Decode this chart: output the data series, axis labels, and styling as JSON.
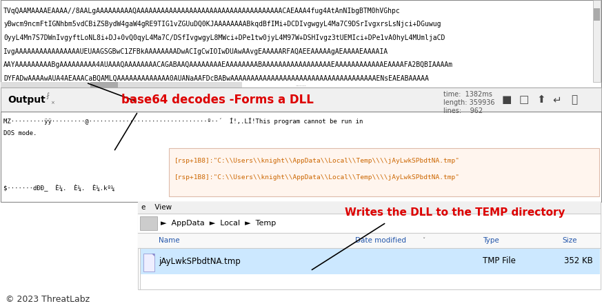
{
  "fig_width": 8.73,
  "fig_height": 4.47,
  "bg_color": "#ffffff",
  "base64_text_lines": [
    "TVqQAAMAAAAEAAAA//8AALgAAAAAAAAAQAAAAAAAAAAAAAAAAAAAAAAAAAAAAAAAAAAAACAEAAA4fug4AtAnNIbgBTM0hVGhpc",
    "yBwcm9ncmFtIGNhbm5vdCBiZSBydW4gaW4gRE9TIG1vZGUuDQ0KJAAAAAAAABkqdBfIMi+DCDIvgwgyL4Ma7C9DSrIvgxrsLsNjci+DGuwug",
    "0yyL4Mn7S7DWnIvgyftLoNL8i+DJ+0vQ0qyL4Ma7C/DSfIvgwgyL8MWci+DPe1tw0jyL4M97W+DSHIvgz3tUEMIci+DPe1vA0hyL4MUmljaCD",
    "IvgAAAAAAAAAAAAAAAAUEUAAGSGBwC1ZFBkAAAAAAAADwACIgCwIOIwDUAwAAvgEAAAAARFAQAEEAAAAAgAEAAAAEAAAAIA",
    "AAYAAAAAAAAABgAAAAAAAAA4AUAAAQAAAAAAAACAGABAAQAAAAAAAAEAAAAAAAABAAAAAAAAAAAAAAAAAEAAAAAAAAAAAAEAAAAFA2BQBIAAAAm",
    "DYFADwAAAAwAUA4AEAAACaBQAMLQAAAAAAAAAAAAA0AUANaAAFDcBABwAAAAAAAAAAAAAAAAAAAAAAAAAAAAAAAAAAAAENsEAEABAAAAA"
  ],
  "base64_text_color": "#000000",
  "base64_bg_color": "#ffffff",
  "base64_border_color": "#888888",
  "toolbar_bg": "#f0f0f0",
  "toolbar_border": "#aaaaaa",
  "output_label": "Output",
  "annotation1_text": "base64 decodes -Forms a DLL",
  "annotation1_color": "#dd0000",
  "time_text": "time:  1382ms",
  "length_text": "length: 359936",
  "lines_text": "lines:    962",
  "stats_color": "#555555",
  "dos_line1": "MZ·········ÿÿ·········@································º··´  Í!,.LÍ!This program cannot be run in",
  "dos_line2": "DOS mode.",
  "dos_line3": "$·······dÐÐ_  È¼.  È¼.  È¼.kº¼",
  "dos_text_color": "#000000",
  "dos_bg": "#ffffff",
  "hex_line1": "[rsp+1B8]:\"C:\\\\Users\\\\knight\\\\AppData\\\\Local\\\\Temp\\\\\\\\jAyLwkSPbdtNA.tmp\"",
  "hex_line2": "[rsp+1B8]:\"C:\\\\Users\\\\knight\\\\AppData\\\\Local\\\\Temp\\\\\\\\jAyLwkSPbdtNA.tmp\"",
  "hex_text_color": "#cc6600",
  "hex_bg_color": "#fff5ee",
  "hex_border_color": "#ddbbaa",
  "annotation2_text": "Writes the DLL to the TEMP directory",
  "annotation2_color": "#dd0000",
  "explorer_header_bg": "#f0f0f0",
  "explorer_border": "#cccccc",
  "menu_text": "e    View",
  "breadcrumb_text": "►  AppData  ►  Local  ►  Temp",
  "col_name": "Name",
  "col_date": "Date modified",
  "col_type": "Type",
  "col_size": "Size",
  "col_color": "#2255aa",
  "file_name": "jAyLwkSPbdtNA.tmp",
  "file_type": "TMP File",
  "file_size": "352 KB",
  "file_row_bg": "#cce8ff",
  "footer_text": "© 2023 ThreatLabz",
  "footer_color": "#333333",
  "footer_fontsize": 9
}
